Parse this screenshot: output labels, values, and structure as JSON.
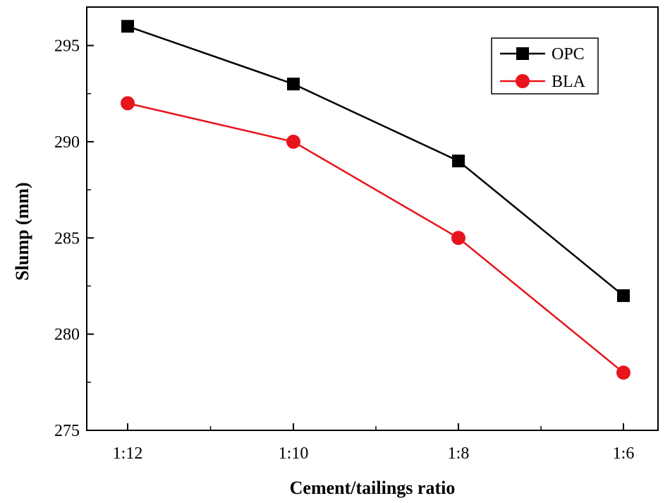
{
  "chart_data": {
    "type": "line",
    "xlabel": "Cement/tailings ratio",
    "ylabel": "Slump (mm)",
    "categories": [
      "1:12",
      "1:10",
      "1:8",
      "1:6"
    ],
    "ylim": [
      275,
      297
    ],
    "yticks": [
      275,
      280,
      285,
      290,
      295
    ],
    "grid": false,
    "legend_position": "top-right",
    "series": [
      {
        "name": "OPC",
        "values": [
          296,
          293,
          289,
          282
        ],
        "color": "#000000",
        "marker": "square"
      },
      {
        "name": "BLA",
        "values": [
          292,
          290,
          285,
          278
        ],
        "color": "#e8141b",
        "marker": "circle"
      }
    ]
  }
}
